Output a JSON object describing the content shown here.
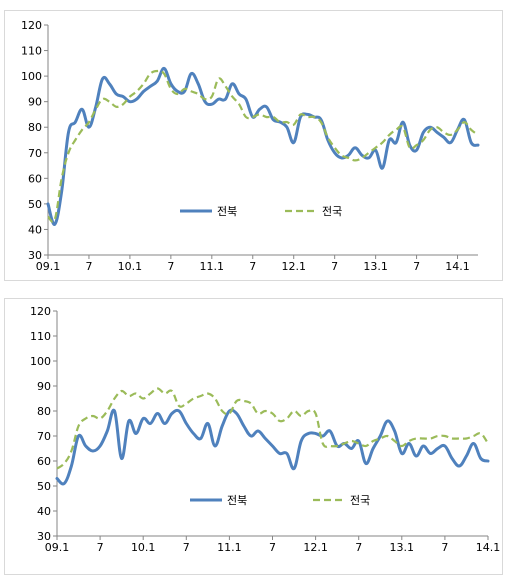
{
  "chart_data": [
    {
      "type": "line",
      "title": "",
      "xlabel": "",
      "ylabel": "",
      "ylim": [
        30,
        120
      ],
      "yticks": [
        30,
        40,
        50,
        60,
        70,
        80,
        90,
        100,
        110,
        120
      ],
      "xtick_labels": [
        "09.1",
        "7",
        "10.1",
        "7",
        "11.1",
        "7",
        "12.1",
        "7",
        "13.1",
        "7",
        "14.1"
      ],
      "grid": false,
      "legend": "center",
      "series": [
        {
          "name": "전북",
          "style": "solid",
          "color": "#4f81bd",
          "values": [
            50,
            42,
            55,
            78,
            82,
            87,
            80,
            88,
            99,
            97,
            93,
            92,
            90,
            91,
            94,
            96,
            98,
            103,
            97,
            94,
            94,
            101,
            97,
            90,
            89,
            91,
            91,
            97,
            93,
            91,
            84,
            87,
            88,
            83,
            82,
            80,
            74,
            84,
            85,
            84,
            83,
            75,
            70,
            68,
            69,
            72,
            69,
            68,
            71,
            64,
            75,
            74,
            82,
            73,
            71,
            78,
            80,
            78,
            76,
            74,
            79,
            83,
            74,
            73
          ]
        },
        {
          "name": "전국",
          "style": "dashed",
          "color": "#9bbb59",
          "values": [
            45,
            44,
            60,
            70,
            75,
            79,
            82,
            87,
            91,
            90,
            88,
            89,
            92,
            94,
            97,
            101,
            102,
            101,
            95,
            93,
            95,
            94,
            93,
            91,
            92,
            99,
            96,
            92,
            89,
            84,
            84,
            85,
            84,
            84,
            82,
            82,
            81,
            85,
            84,
            84,
            82,
            76,
            72,
            69,
            68,
            67,
            68,
            70,
            72,
            74,
            77,
            79,
            80,
            72,
            73,
            75,
            79,
            80,
            78,
            77,
            79,
            82,
            79,
            77
          ]
        }
      ]
    },
    {
      "type": "line",
      "title": "",
      "xlabel": "",
      "ylabel": "",
      "ylim": [
        30,
        120
      ],
      "yticks": [
        30,
        40,
        50,
        60,
        70,
        80,
        90,
        100,
        110,
        120
      ],
      "xtick_labels": [
        "09.1",
        "7",
        "10.1",
        "7",
        "11.1",
        "7",
        "12.1",
        "7",
        "13.1",
        "7",
        "14.1"
      ],
      "grid": false,
      "legend": "center",
      "series": [
        {
          "name": "전북",
          "style": "solid",
          "color": "#4f81bd",
          "values": [
            53,
            51,
            58,
            70,
            66,
            64,
            66,
            72,
            80,
            61,
            76,
            71,
            77,
            75,
            79,
            75,
            79,
            80,
            75,
            71,
            69,
            75,
            66,
            74,
            80,
            79,
            74,
            70,
            72,
            69,
            66,
            63,
            63,
            57,
            68,
            71,
            71,
            70,
            72,
            66,
            67,
            65,
            68,
            59,
            65,
            70,
            76,
            72,
            63,
            67,
            62,
            66,
            63,
            65,
            66,
            61,
            58,
            62,
            67,
            61,
            60
          ]
        },
        {
          "name": "전국",
          "style": "dashed",
          "color": "#9bbb59",
          "values": [
            57,
            59,
            64,
            74,
            77,
            78,
            77,
            80,
            85,
            88,
            86,
            87,
            85,
            87,
            89,
            87,
            88,
            82,
            83,
            85,
            86,
            87,
            85,
            80,
            79,
            84,
            84,
            83,
            79,
            80,
            79,
            76,
            77,
            80,
            78,
            80,
            79,
            67,
            66,
            66,
            67,
            68,
            67,
            66,
            68,
            69,
            70,
            68,
            66,
            68,
            69,
            69,
            69,
            70,
            70,
            69,
            69,
            69,
            70,
            71,
            67
          ]
        }
      ]
    }
  ]
}
